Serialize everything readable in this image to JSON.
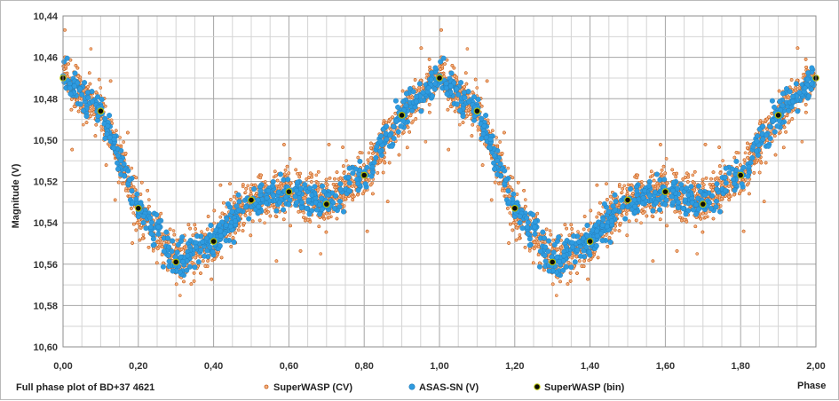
{
  "chart_data": {
    "type": "scatter",
    "footer_caption": "Full phase plot of BD+37 4621",
    "xlabel": "Phase",
    "ylabel": "Magnitude (V)",
    "xlim": [
      0,
      2
    ],
    "ylim": [
      10.44,
      10.6
    ],
    "y_inverted": true,
    "x_ticks": [
      "0,00",
      "0,20",
      "0,40",
      "0,60",
      "0,80",
      "1,00",
      "1,20",
      "1,40",
      "1,60",
      "1,80",
      "2,00"
    ],
    "y_ticks": [
      "10,44",
      "10,46",
      "10,48",
      "10,50",
      "10,52",
      "10,54",
      "10,56",
      "10,58",
      "10,60"
    ],
    "grid": true,
    "legend_position": "bottom",
    "series": [
      {
        "name": "SuperWASP (CV)",
        "marker": "small-circle",
        "color": "#f4b183",
        "edge_color": "#c55a11",
        "description_note": "dense scatter, thousands of points, mean follows binned curve with ~0.02 mag scatter"
      },
      {
        "name": "ASAS-SN (V)",
        "marker": "circle",
        "color": "#2e9be0",
        "edge_color": "#1f78b4"
      },
      {
        "name": "SuperWASP (bin)",
        "marker": "circle",
        "color": "#0b0b0b",
        "edge_color": "#b8c400",
        "x": [
          0.0,
          0.1,
          0.2,
          0.3,
          0.4,
          0.5,
          0.6,
          0.7,
          0.8,
          0.9,
          1.0,
          1.1,
          1.2,
          1.3,
          1.4,
          1.5,
          1.6,
          1.7,
          1.8,
          1.9,
          2.0
        ],
        "y": [
          10.47,
          10.486,
          10.533,
          10.559,
          10.549,
          10.529,
          10.525,
          10.531,
          10.517,
          10.488,
          10.47,
          10.486,
          10.533,
          10.559,
          10.549,
          10.529,
          10.525,
          10.531,
          10.517,
          10.488,
          10.47
        ]
      }
    ]
  }
}
